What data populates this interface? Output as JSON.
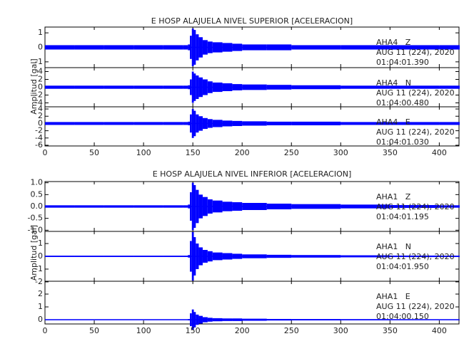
{
  "chart_data": [
    {
      "type": "seismogram",
      "title": "E HOSP ALAJUELA NIVEL SUPERIOR [ACELERACION]",
      "ylabel": "Amplitud [gal]",
      "x": [
        0,
        30,
        60,
        90,
        120,
        140,
        145,
        147,
        149,
        151,
        153,
        156,
        160,
        165,
        170,
        180,
        190,
        200,
        225,
        250,
        300,
        350,
        400,
        420
      ],
      "xlim": [
        0,
        420
      ],
      "xticks": [
        0,
        50,
        100,
        150,
        200,
        250,
        300,
        350,
        400
      ],
      "series": [
        {
          "name": "AHA4   Z",
          "date": "AUG 11 (224), 2020",
          "time": "01:04:01.390",
          "color": "#0000ff",
          "ylim": [
            -1.4,
            1.4
          ],
          "yticks": [
            -1,
            0,
            1
          ],
          "values": [
            0.15,
            0.15,
            0.15,
            0.15,
            0.15,
            0.15,
            0.2,
            0.8,
            1.3,
            1.2,
            0.9,
            0.7,
            0.5,
            0.4,
            0.35,
            0.3,
            0.25,
            0.2,
            0.2,
            0.15,
            0.15,
            0.15,
            0.15,
            0.15
          ]
        },
        {
          "name": "AHA4   N",
          "date": "AUG 11 (224), 2020",
          "time": "01:04:00.480",
          "color": "#0000ff",
          "ylim": [
            -5,
            5
          ],
          "yticks": [
            -4,
            -2,
            0,
            2,
            4
          ],
          "values": [
            0.4,
            0.4,
            0.4,
            0.4,
            0.4,
            0.4,
            0.5,
            2,
            4,
            3.5,
            3,
            2.5,
            2,
            1.5,
            1.2,
            1,
            0.8,
            0.7,
            0.6,
            0.5,
            0.4,
            0.4,
            0.4,
            0.4
          ]
        },
        {
          "name": "AHA4   E",
          "date": "AUG 11 (224), 2020",
          "time": "01:04:01.030",
          "color": "#0000ff",
          "ylim": [
            -6.2,
            4.6
          ],
          "yticks": [
            -6,
            -4,
            -2,
            0,
            2,
            4
          ],
          "values": [
            0.4,
            0.4,
            0.4,
            0.4,
            0.4,
            0.4,
            0.5,
            2.5,
            4,
            3.5,
            2.5,
            2,
            1.5,
            1.2,
            1,
            0.8,
            0.7,
            0.6,
            0.5,
            0.5,
            0.4,
            0.4,
            0.4,
            0.4
          ]
        }
      ]
    },
    {
      "type": "seismogram",
      "title": "E HOSP ALAJUELA NIVEL INFERIOR [ACELERACION]",
      "ylabel": "Amplitud [gal]",
      "x": [
        0,
        30,
        60,
        90,
        120,
        140,
        145,
        147,
        149,
        151,
        153,
        156,
        160,
        165,
        170,
        180,
        190,
        200,
        225,
        250,
        300,
        350,
        400,
        420
      ],
      "xlim": [
        0,
        420
      ],
      "xticks": [
        0,
        50,
        100,
        150,
        200,
        250,
        300,
        350,
        400
      ],
      "series": [
        {
          "name": "AHA1   Z",
          "date": "AUG 11 (224), 2020",
          "time": "01:04:01.195",
          "color": "#0000ff",
          "ylim": [
            -1.05,
            1.05
          ],
          "yticks": [
            {
              "value": -1,
              "label": "-1.0"
            },
            -0.5,
            {
              "value": 0,
              "label": "0.0"
            },
            0.5,
            {
              "value": 1,
              "label": "1.0"
            }
          ],
          "values": [
            0.05,
            0.05,
            0.05,
            0.05,
            0.05,
            0.05,
            0.08,
            0.6,
            1,
            0.9,
            0.7,
            0.5,
            0.4,
            0.3,
            0.25,
            0.2,
            0.18,
            0.15,
            0.12,
            0.1,
            0.08,
            0.06,
            0.05,
            0.05
          ]
        },
        {
          "name": "AHA1   N",
          "date": "AUG 11 (224), 2020",
          "time": "01:04:01.950",
          "color": "#0000ff",
          "ylim": [
            -1.95,
            1.95
          ],
          "yticks": [
            -2,
            -1,
            0,
            1
          ],
          "values": [
            0.05,
            0.05,
            0.05,
            0.05,
            0.05,
            0.05,
            0.1,
            1.2,
            1.9,
            1.5,
            1,
            0.7,
            0.5,
            0.4,
            0.3,
            0.25,
            0.2,
            0.15,
            0.12,
            0.1,
            0.08,
            0.06,
            0.05,
            0.05
          ]
        },
        {
          "name": "AHA1   E",
          "date": "AUG 11 (224), 2020",
          "time": "01:04:00.150",
          "color": "#0000ff",
          "ylim": [
            -0.33,
            3
          ],
          "yticks": [
            0,
            1,
            2
          ],
          "values": [
            0.03,
            0.03,
            0.03,
            0.03,
            0.03,
            0.03,
            0.05,
            0.5,
            0.8,
            0.6,
            0.4,
            0.3,
            0.2,
            0.15,
            0.12,
            0.1,
            0.1,
            0.08,
            0.06,
            0.05,
            0.04,
            0.03,
            0.03,
            0.03
          ]
        }
      ]
    }
  ]
}
